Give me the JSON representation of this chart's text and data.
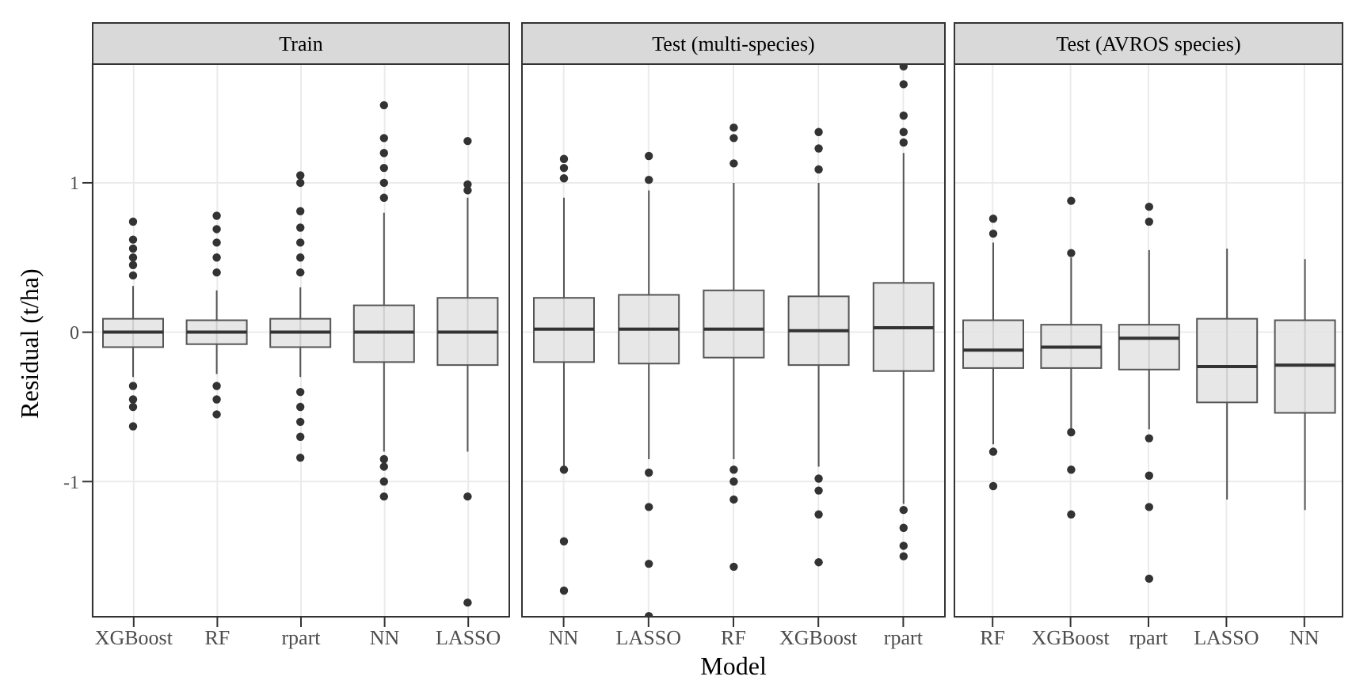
{
  "chart_data": [
    {
      "type": "box",
      "title": "Train",
      "ylabel": "Residual (t/ha)",
      "categories": [
        "XGBoost",
        "RF",
        "rpart",
        "NN",
        "LASSO"
      ],
      "ylim": [
        -1.91,
        1.8
      ],
      "yticks": [
        -1,
        0,
        1
      ],
      "grid": true,
      "boxes": [
        {
          "low": -0.3,
          "q1": -0.1,
          "median": 0,
          "q3": 0.09,
          "high": 0.31,
          "outliers": [
            0.74,
            0.62,
            0.56,
            0.5,
            0.45,
            0.38,
            -0.36,
            -0.45,
            -0.5,
            -0.63
          ]
        },
        {
          "low": -0.28,
          "q1": -0.08,
          "median": 0,
          "q3": 0.08,
          "high": 0.28,
          "outliers": [
            0.78,
            0.69,
            0.6,
            0.5,
            0.4,
            -0.36,
            -0.45,
            -0.55
          ]
        },
        {
          "low": -0.3,
          "q1": -0.1,
          "median": 0,
          "q3": 0.09,
          "high": 0.3,
          "outliers": [
            1.05,
            1.0,
            0.81,
            0.7,
            0.6,
            0.5,
            0.4,
            -0.4,
            -0.5,
            -0.6,
            -0.7,
            -0.84
          ]
        },
        {
          "low": -0.8,
          "q1": -0.2,
          "median": 0,
          "q3": 0.18,
          "high": 0.8,
          "outliers": [
            1.52,
            1.3,
            1.2,
            1.1,
            1.0,
            0.9,
            -0.85,
            -0.9,
            -1.0,
            -1.1
          ]
        },
        {
          "low": -0.8,
          "q1": -0.22,
          "median": 0,
          "q3": 0.23,
          "high": 0.9,
          "outliers": [
            1.28,
            0.99,
            0.95,
            -1.1,
            -1.81
          ]
        }
      ]
    },
    {
      "type": "box",
      "title": "Test (multi-species)",
      "xlabel": "Model",
      "categories": [
        "NN",
        "LASSO",
        "RF",
        "XGBoost",
        "rpart"
      ],
      "ylim": [
        -1.91,
        1.8
      ],
      "yticks": [
        -1,
        0,
        1
      ],
      "grid": true,
      "tick_labels": "x",
      "boxes": [
        {
          "low": -0.9,
          "q1": -0.2,
          "median": 0.02,
          "q3": 0.23,
          "high": 0.9,
          "outliers": [
            1.16,
            1.1,
            1.03,
            -0.92,
            -1.4,
            -1.73
          ]
        },
        {
          "low": -0.85,
          "q1": -0.21,
          "median": 0.02,
          "q3": 0.25,
          "high": 0.95,
          "outliers": [
            1.18,
            1.02,
            -0.94,
            -1.17,
            -1.55,
            -1.9
          ]
        },
        {
          "low": -0.85,
          "q1": -0.17,
          "median": 0.02,
          "q3": 0.28,
          "high": 1.0,
          "outliers": [
            1.37,
            1.3,
            1.13,
            -0.92,
            -1.0,
            -1.12,
            -1.57
          ]
        },
        {
          "low": -0.9,
          "q1": -0.22,
          "median": 0.01,
          "q3": 0.24,
          "high": 1.0,
          "outliers": [
            1.34,
            1.23,
            1.09,
            -0.98,
            -1.06,
            -1.22,
            -1.54
          ]
        },
        {
          "low": -1.15,
          "q1": -0.26,
          "median": 0.03,
          "q3": 0.33,
          "high": 1.2,
          "outliers": [
            1.78,
            1.66,
            1.45,
            1.34,
            1.27,
            -1.19,
            -1.31,
            -1.43,
            -1.5
          ]
        }
      ]
    },
    {
      "type": "box",
      "title": "Test (AVROS species)",
      "categories": [
        "RF",
        "XGBoost",
        "rpart",
        "LASSO",
        "NN"
      ],
      "ylim": [
        -1.91,
        1.8
      ],
      "yticks": [
        -1,
        0,
        1
      ],
      "grid": true,
      "tick_labels": "x",
      "boxes": [
        {
          "low": -0.75,
          "q1": -0.24,
          "median": -0.12,
          "q3": 0.08,
          "high": 0.6,
          "outliers": [
            0.76,
            0.66,
            -0.8,
            -1.03
          ]
        },
        {
          "low": -0.65,
          "q1": -0.24,
          "median": -0.1,
          "q3": 0.05,
          "high": 0.5,
          "outliers": [
            0.88,
            0.53,
            -0.67,
            -0.92,
            -1.22
          ]
        },
        {
          "low": -0.65,
          "q1": -0.25,
          "median": -0.04,
          "q3": 0.05,
          "high": 0.55,
          "outliers": [
            0.84,
            0.74,
            -0.71,
            -0.96,
            -1.17,
            -1.65
          ]
        },
        {
          "low": -1.12,
          "q1": -0.47,
          "median": -0.23,
          "q3": 0.09,
          "high": 0.56
        },
        {
          "low": -1.19,
          "q1": -0.54,
          "median": -0.22,
          "q3": 0.08,
          "high": 0.49
        }
      ]
    }
  ]
}
